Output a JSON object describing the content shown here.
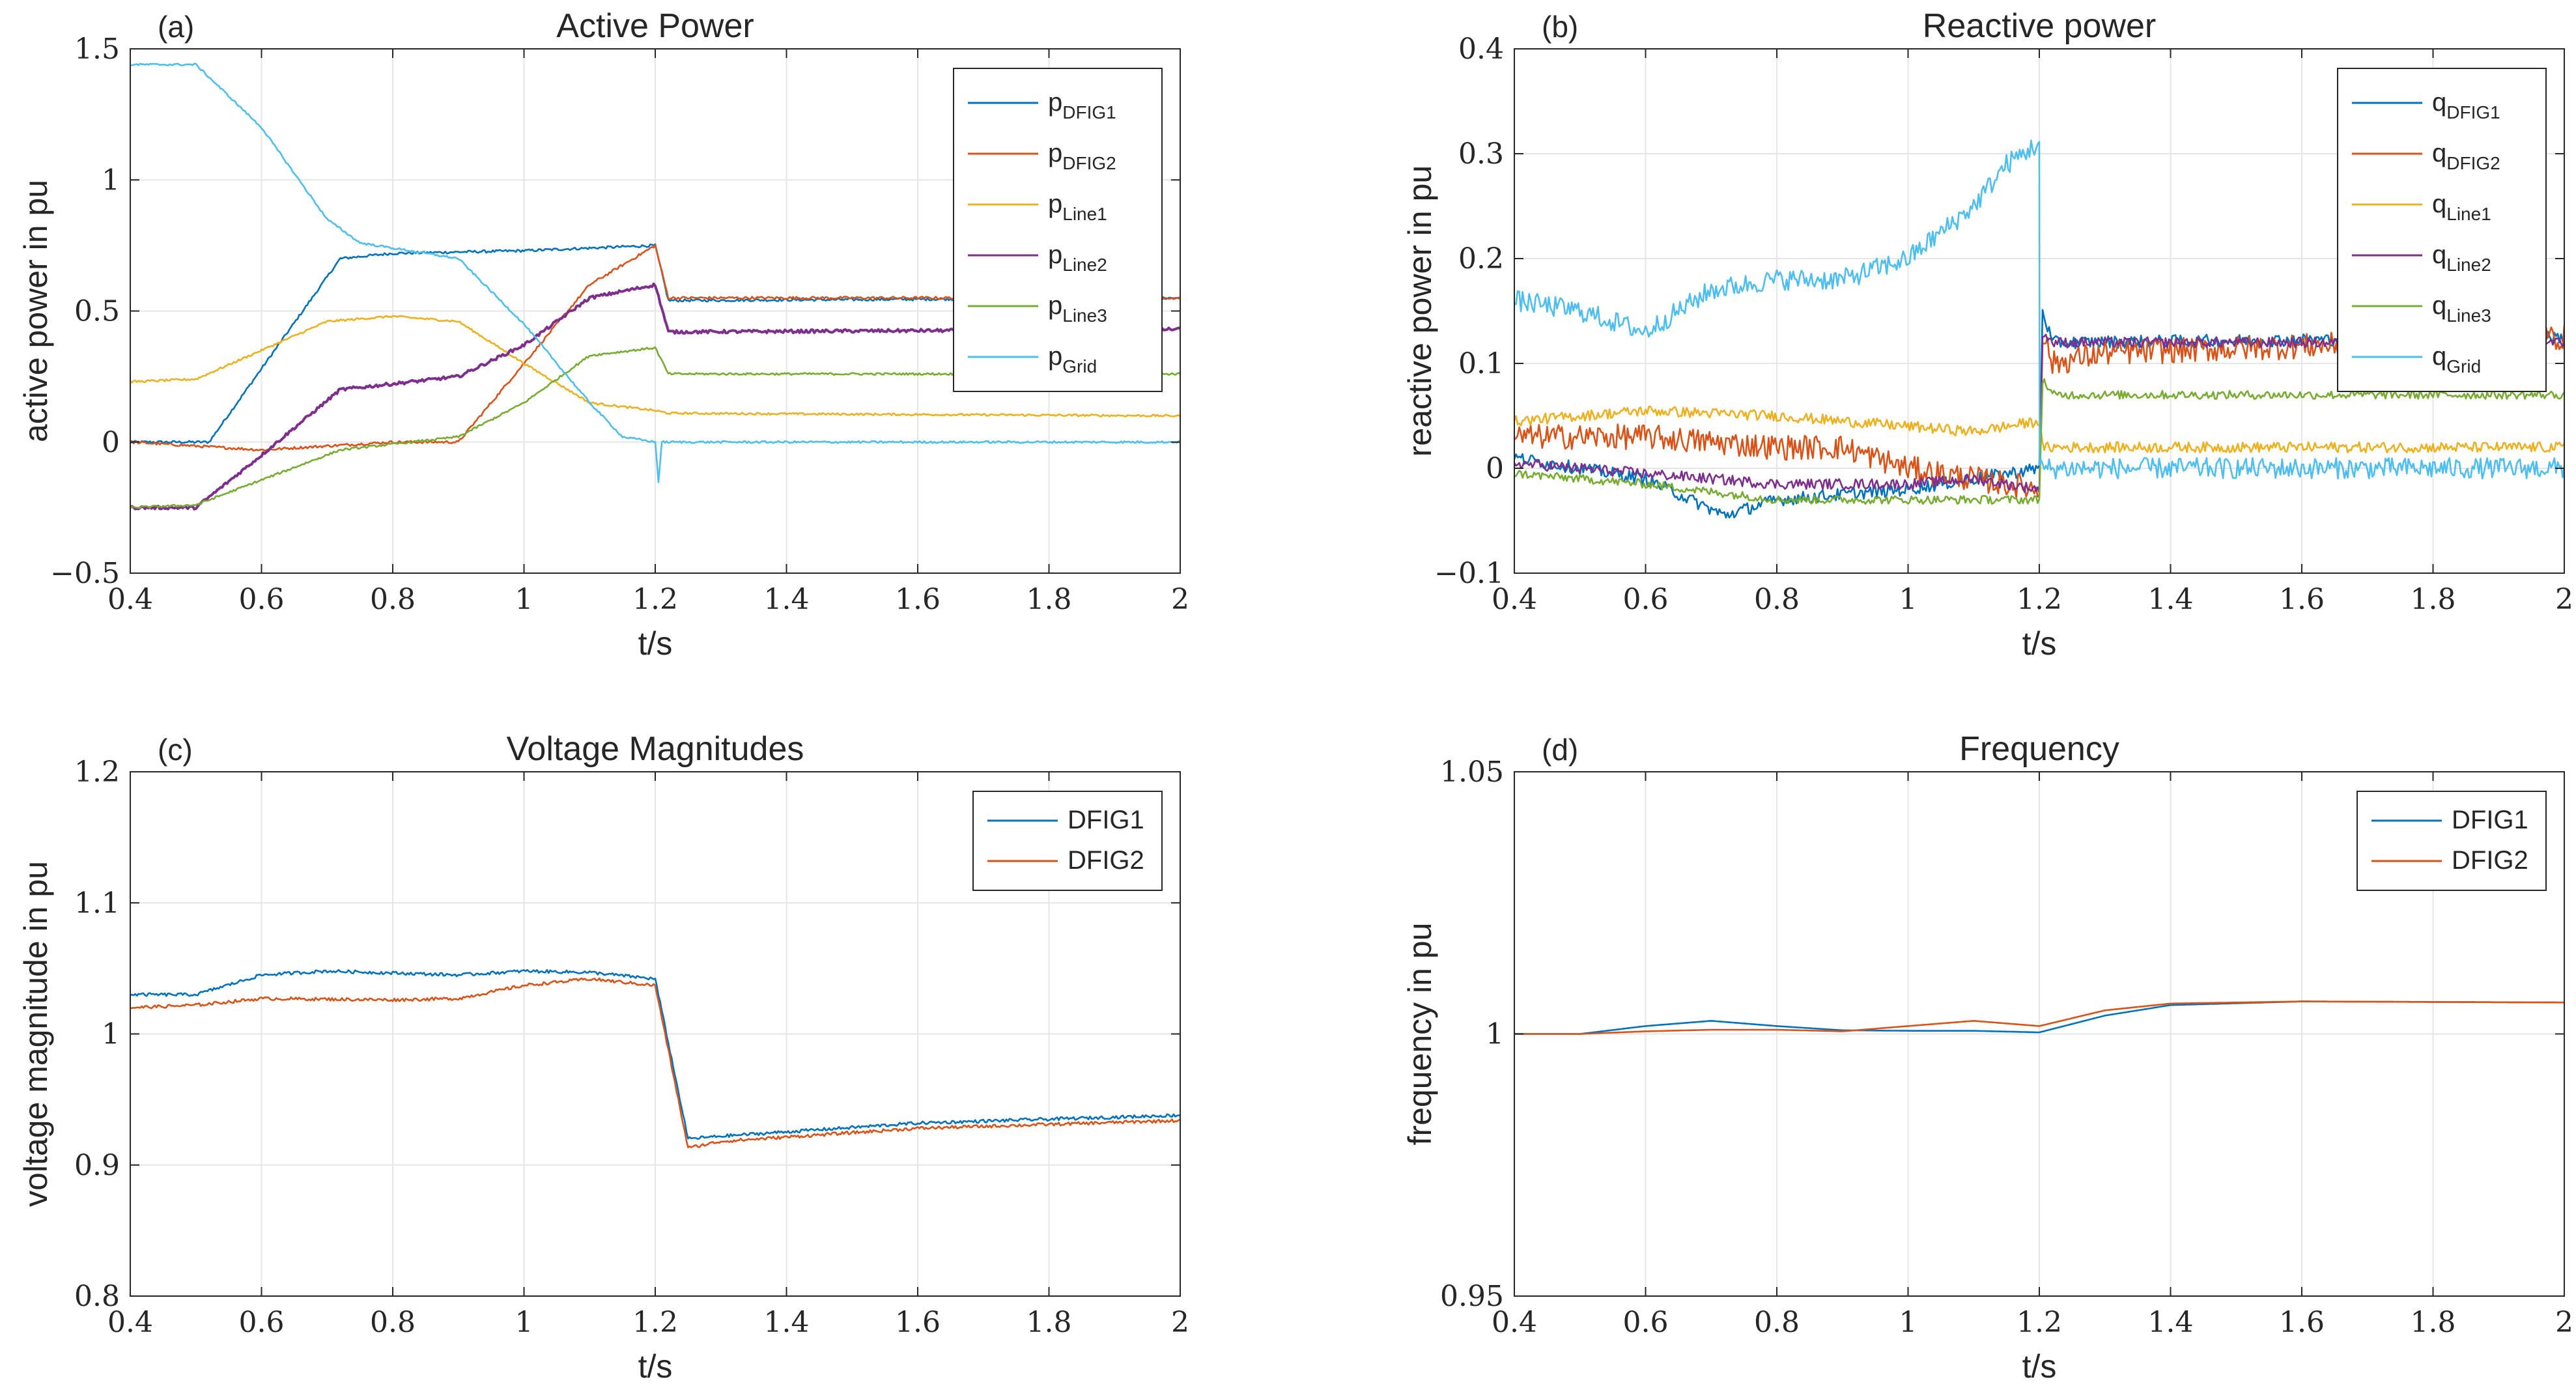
{
  "colors": {
    "blue": "#0072BD",
    "orange": "#D95319",
    "yellow": "#EDB120",
    "purple": "#7E2F8E",
    "green": "#77AC30",
    "cyan": "#4DBEEE",
    "grid": "#e5e5e5",
    "axis": "#262626"
  },
  "chart_data": [
    {
      "id": "a",
      "type": "line",
      "panel_label": "(a)",
      "title": "Active Power",
      "xlabel": "t/s",
      "ylabel": "active power in pu",
      "xlim": [
        0.4,
        2
      ],
      "ylim": [
        -0.5,
        1.5
      ],
      "xticks": [
        0.4,
        0.6,
        0.8,
        1,
        1.2,
        1.4,
        1.6,
        1.8,
        2
      ],
      "xtick_labels": [
        "0.4",
        "0.6",
        "0.8",
        "1",
        "1.2",
        "1.4",
        "1.6",
        "1.8",
        "2"
      ],
      "yticks": [
        -0.5,
        0,
        0.5,
        1,
        1.5
      ],
      "ytick_labels": [
        "−0.5",
        "0",
        "0.5",
        "1",
        "1.5"
      ],
      "legend_position": "top-right",
      "series": [
        {
          "base": "p",
          "sub": "DFIG1",
          "color": "blue",
          "noise": 0.005,
          "points": [
            [
              0.4,
              0
            ],
            [
              0.52,
              0
            ],
            [
              0.72,
              0.7
            ],
            [
              0.8,
              0.72
            ],
            [
              1.0,
              0.73
            ],
            [
              1.2,
              0.75
            ],
            [
              1.22,
              0.54
            ],
            [
              2,
              0.55
            ]
          ]
        },
        {
          "base": "p",
          "sub": "DFIG2",
          "color": "orange",
          "noise": 0.005,
          "points": [
            [
              0.4,
              0
            ],
            [
              0.6,
              -0.03
            ],
            [
              0.8,
              0
            ],
            [
              0.9,
              0
            ],
            [
              1.0,
              0.3
            ],
            [
              1.1,
              0.6
            ],
            [
              1.2,
              0.75
            ],
            [
              1.22,
              0.55
            ],
            [
              2,
              0.55
            ]
          ]
        },
        {
          "base": "p",
          "sub": "Line1",
          "color": "yellow",
          "noise": 0.004,
          "points": [
            [
              0.4,
              0.23
            ],
            [
              0.5,
              0.24
            ],
            [
              0.6,
              0.35
            ],
            [
              0.7,
              0.46
            ],
            [
              0.8,
              0.48
            ],
            [
              0.9,
              0.46
            ],
            [
              1.0,
              0.3
            ],
            [
              1.1,
              0.15
            ],
            [
              1.2,
              0.12
            ],
            [
              1.22,
              0.11
            ],
            [
              2,
              0.1
            ]
          ]
        },
        {
          "base": "p",
          "sub": "Line2",
          "color": "purple",
          "noise": 0.006,
          "width": 4,
          "points": [
            [
              0.4,
              -0.25
            ],
            [
              0.5,
              -0.25
            ],
            [
              0.6,
              -0.05
            ],
            [
              0.72,
              0.2
            ],
            [
              0.9,
              0.25
            ],
            [
              1.0,
              0.37
            ],
            [
              1.1,
              0.55
            ],
            [
              1.2,
              0.6
            ],
            [
              1.22,
              0.42
            ],
            [
              2,
              0.43
            ]
          ]
        },
        {
          "base": "p",
          "sub": "Line3",
          "color": "green",
          "noise": 0.004,
          "points": [
            [
              0.4,
              -0.25
            ],
            [
              0.5,
              -0.24
            ],
            [
              0.72,
              -0.03
            ],
            [
              0.9,
              0.02
            ],
            [
              1.0,
              0.15
            ],
            [
              1.1,
              0.33
            ],
            [
              1.2,
              0.36
            ],
            [
              1.22,
              0.26
            ],
            [
              2,
              0.26
            ]
          ]
        },
        {
          "base": "p",
          "sub": "Grid",
          "color": "cyan",
          "noise": 0.004,
          "points": [
            [
              0.4,
              1.44
            ],
            [
              0.5,
              1.44
            ],
            [
              0.6,
              1.2
            ],
            [
              0.7,
              0.85
            ],
            [
              0.75,
              0.76
            ],
            [
              0.9,
              0.7
            ],
            [
              1.0,
              0.45
            ],
            [
              1.1,
              0.15
            ],
            [
              1.15,
              0.02
            ],
            [
              1.2,
              0.0
            ],
            [
              1.205,
              -0.15
            ],
            [
              1.21,
              0.0
            ],
            [
              2,
              0.0
            ]
          ]
        }
      ]
    },
    {
      "id": "b",
      "type": "line",
      "panel_label": "(b)",
      "title": "Reactive power",
      "xlabel": "t/s",
      "ylabel": "reactive power in pu",
      "xlim": [
        0.4,
        2
      ],
      "ylim": [
        -0.1,
        0.4
      ],
      "xticks": [
        0.4,
        0.6,
        0.8,
        1,
        1.2,
        1.4,
        1.6,
        1.8,
        2
      ],
      "xtick_labels": [
        "0.4",
        "0.6",
        "0.8",
        "1",
        "1.2",
        "1.4",
        "1.6",
        "1.8",
        "2"
      ],
      "yticks": [
        -0.1,
        0,
        0.1,
        0.2,
        0.3,
        0.4
      ],
      "ytick_labels": [
        "−0.1",
        "0",
        "0.1",
        "0.2",
        "0.3",
        "0.4"
      ],
      "legend_position": "top-right",
      "series": [
        {
          "base": "q",
          "sub": "DFIG1",
          "color": "blue",
          "noise": 0.006,
          "points": [
            [
              0.4,
              0.01
            ],
            [
              0.6,
              -0.01
            ],
            [
              0.72,
              -0.045
            ],
            [
              0.8,
              -0.03
            ],
            [
              1.0,
              -0.02
            ],
            [
              1.1,
              -0.01
            ],
            [
              1.2,
              0.0
            ],
            [
              1.205,
              0.15
            ],
            [
              1.22,
              0.12
            ],
            [
              2,
              0.125
            ]
          ]
        },
        {
          "base": "q",
          "sub": "DFIG2",
          "color": "orange",
          "noise": 0.012,
          "points": [
            [
              0.4,
              0.03
            ],
            [
              0.6,
              0.03
            ],
            [
              0.8,
              0.02
            ],
            [
              0.9,
              0.02
            ],
            [
              1.0,
              0.0
            ],
            [
              1.1,
              -0.01
            ],
            [
              1.2,
              -0.02
            ],
            [
              1.205,
              0.13
            ],
            [
              1.22,
              0.1
            ],
            [
              1.3,
              0.11
            ],
            [
              2,
              0.125
            ]
          ]
        },
        {
          "base": "q",
          "sub": "Line1",
          "color": "yellow",
          "noise": 0.005,
          "points": [
            [
              0.4,
              0.045
            ],
            [
              0.6,
              0.055
            ],
            [
              0.8,
              0.05
            ],
            [
              1.0,
              0.04
            ],
            [
              1.1,
              0.035
            ],
            [
              1.2,
              0.045
            ],
            [
              1.205,
              0.02
            ],
            [
              2,
              0.02
            ]
          ]
        },
        {
          "base": "q",
          "sub": "Line2",
          "color": "purple",
          "noise": 0.005,
          "points": [
            [
              0.4,
              0.005
            ],
            [
              0.6,
              -0.005
            ],
            [
              0.8,
              -0.015
            ],
            [
              1.0,
              -0.015
            ],
            [
              1.1,
              -0.01
            ],
            [
              1.2,
              -0.02
            ],
            [
              1.205,
              0.13
            ],
            [
              1.22,
              0.12
            ],
            [
              2,
              0.12
            ]
          ]
        },
        {
          "base": "q",
          "sub": "Line3",
          "color": "green",
          "noise": 0.004,
          "points": [
            [
              0.4,
              -0.005
            ],
            [
              0.6,
              -0.015
            ],
            [
              0.8,
              -0.03
            ],
            [
              1.0,
              -0.03
            ],
            [
              1.2,
              -0.03
            ],
            [
              1.205,
              0.085
            ],
            [
              1.22,
              0.07
            ],
            [
              2,
              0.07
            ]
          ]
        },
        {
          "base": "q",
          "sub": "Grid",
          "color": "cyan",
          "noise": 0.01,
          "points": [
            [
              0.4,
              0.16
            ],
            [
              0.5,
              0.15
            ],
            [
              0.6,
              0.13
            ],
            [
              0.7,
              0.17
            ],
            [
              0.8,
              0.18
            ],
            [
              0.9,
              0.18
            ],
            [
              1.0,
              0.2
            ],
            [
              1.1,
              0.25
            ],
            [
              1.15,
              0.29
            ],
            [
              1.2,
              0.31
            ],
            [
              1.2005,
              0.0
            ],
            [
              2,
              0.0
            ]
          ]
        }
      ]
    },
    {
      "id": "c",
      "type": "line",
      "panel_label": "(c)",
      "title": "Voltage Magnitudes",
      "xlabel": "t/s",
      "ylabel": "voltage magnitude in pu",
      "xlim": [
        0.4,
        2
      ],
      "ylim": [
        0.8,
        1.2
      ],
      "xticks": [
        0.4,
        0.6,
        0.8,
        1,
        1.2,
        1.4,
        1.6,
        1.8,
        2
      ],
      "xtick_labels": [
        "0.4",
        "0.6",
        "0.8",
        "1",
        "1.2",
        "1.4",
        "1.6",
        "1.8",
        "2"
      ],
      "yticks": [
        0.8,
        0.9,
        1,
        1.1,
        1.2
      ],
      "ytick_labels": [
        "0.8",
        "0.9",
        "1",
        "1.1",
        "1.2"
      ],
      "legend_position": "top-right",
      "series": [
        {
          "base": "DFIG1",
          "sub": "",
          "color": "blue",
          "noise": 0.0012,
          "points": [
            [
              0.4,
              1.03
            ],
            [
              0.5,
              1.03
            ],
            [
              0.6,
              1.045
            ],
            [
              0.7,
              1.048
            ],
            [
              0.9,
              1.045
            ],
            [
              1.0,
              1.048
            ],
            [
              1.1,
              1.047
            ],
            [
              1.2,
              1.042
            ],
            [
              1.25,
              0.92
            ],
            [
              1.3,
              0.922
            ],
            [
              1.6,
              0.932
            ],
            [
              2,
              0.938
            ]
          ]
        },
        {
          "base": "DFIG2",
          "sub": "",
          "color": "orange",
          "noise": 0.0012,
          "points": [
            [
              0.4,
              1.02
            ],
            [
              0.5,
              1.022
            ],
            [
              0.6,
              1.027
            ],
            [
              0.8,
              1.026
            ],
            [
              0.9,
              1.027
            ],
            [
              1.0,
              1.037
            ],
            [
              1.1,
              1.042
            ],
            [
              1.2,
              1.037
            ],
            [
              1.25,
              0.913
            ],
            [
              1.3,
              0.918
            ],
            [
              1.6,
              0.928
            ],
            [
              2,
              0.934
            ]
          ]
        }
      ]
    },
    {
      "id": "d",
      "type": "line",
      "panel_label": "(d)",
      "title": "Frequency",
      "xlabel": "t/s",
      "ylabel": "frequency in pu",
      "xlim": [
        0.4,
        2
      ],
      "ylim": [
        0.95,
        1.05
      ],
      "xticks": [
        0.4,
        0.6,
        0.8,
        1,
        1.2,
        1.4,
        1.6,
        1.8,
        2
      ],
      "xtick_labels": [
        "0.4",
        "0.6",
        "0.8",
        "1",
        "1.2",
        "1.4",
        "1.6",
        "1.8",
        "2"
      ],
      "yticks": [
        0.95,
        1,
        1.05
      ],
      "ytick_labels": [
        "0.95",
        "1",
        "1.05"
      ],
      "legend_position": "top-right",
      "series": [
        {
          "base": "DFIG1",
          "sub": "",
          "color": "blue",
          "noise": 0,
          "points": [
            [
              0.4,
              1.0
            ],
            [
              0.5,
              1.0
            ],
            [
              0.6,
              1.0015
            ],
            [
              0.7,
              1.0025
            ],
            [
              0.8,
              1.0015
            ],
            [
              0.9,
              1.0007
            ],
            [
              1.0,
              1.0006
            ],
            [
              1.1,
              1.0006
            ],
            [
              1.2,
              1.0003
            ],
            [
              1.3,
              1.0035
            ],
            [
              1.4,
              1.0055
            ],
            [
              1.6,
              1.0062
            ],
            [
              2,
              1.006
            ]
          ]
        },
        {
          "base": "DFIG2",
          "sub": "",
          "color": "orange",
          "noise": 0,
          "points": [
            [
              0.4,
              1.0
            ],
            [
              0.5,
              1.0
            ],
            [
              0.6,
              1.0005
            ],
            [
              0.7,
              1.0008
            ],
            [
              0.8,
              1.0008
            ],
            [
              0.9,
              1.0005
            ],
            [
              1.0,
              1.0015
            ],
            [
              1.1,
              1.0025
            ],
            [
              1.2,
              1.0015
            ],
            [
              1.3,
              1.0045
            ],
            [
              1.4,
              1.0058
            ],
            [
              1.6,
              1.0062
            ],
            [
              2,
              1.006
            ]
          ]
        }
      ]
    }
  ]
}
